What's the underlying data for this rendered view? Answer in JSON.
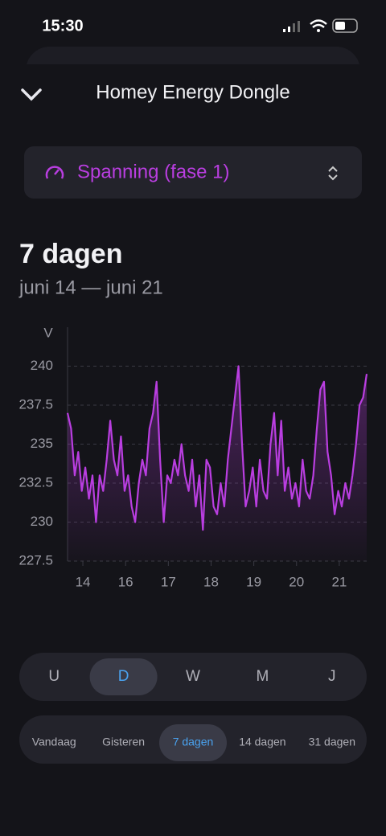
{
  "status_bar": {
    "time": "15:30"
  },
  "header": {
    "title": "Homey Energy Dongle"
  },
  "selector": {
    "label": "Spanning (fase 1)"
  },
  "period": {
    "title": "7 dagen",
    "range": "juni 14 — juni 21"
  },
  "chart_data": {
    "type": "line",
    "y_label": "V",
    "grid": true,
    "area": true,
    "xlim": [
      0,
      168
    ],
    "ylim": [
      227.5,
      242.5
    ],
    "xticks": [
      {
        "value": 8.6,
        "label": "14"
      },
      {
        "value": 32.6,
        "label": "16"
      },
      {
        "value": 56.6,
        "label": "17"
      },
      {
        "value": 80.6,
        "label": "18"
      },
      {
        "value": 104.6,
        "label": "19"
      },
      {
        "value": 128.6,
        "label": "20"
      },
      {
        "value": 152.6,
        "label": "21"
      }
    ],
    "yticks": [
      227.5,
      230,
      232.5,
      235,
      237.5,
      240
    ],
    "series": [
      {
        "color": "#b93ee0",
        "x": [
          0,
          2,
          4,
          6,
          8,
          10,
          12,
          14,
          16,
          18,
          20,
          22,
          24,
          26,
          28,
          30,
          32,
          34,
          36,
          38,
          40,
          42,
          44,
          46,
          48,
          50,
          52,
          54,
          56,
          58,
          60,
          62,
          64,
          66,
          68,
          70,
          72,
          74,
          76,
          78,
          80,
          82,
          84,
          86,
          88,
          90,
          92,
          94,
          96,
          98,
          100,
          102,
          104,
          106,
          108,
          110,
          112,
          114,
          116,
          118,
          120,
          122,
          124,
          126,
          128,
          130,
          132,
          134,
          136,
          138,
          140,
          142,
          144,
          146,
          148,
          150,
          152,
          154,
          156,
          158,
          160,
          162,
          164,
          166,
          168
        ],
        "values": [
          237,
          236,
          233,
          234.5,
          232,
          233.5,
          231.5,
          233,
          230,
          233,
          232,
          234,
          236.5,
          234,
          233,
          235.5,
          232,
          233,
          231,
          230,
          232.5,
          234,
          233,
          236,
          237,
          239,
          234,
          230,
          233,
          232.5,
          234,
          233,
          235,
          233,
          232,
          234,
          231,
          233,
          229.5,
          234,
          233.5,
          231,
          230.5,
          232.5,
          231,
          234,
          236,
          238,
          240,
          235,
          231,
          232,
          233.5,
          231,
          234,
          232,
          231.5,
          235,
          237,
          233,
          236.5,
          232,
          233.5,
          231.5,
          232.5,
          231,
          234,
          232,
          231.5,
          233,
          236,
          238.5,
          239,
          234.5,
          233,
          230.5,
          232,
          231,
          232.5,
          231.5,
          233,
          235,
          237.5,
          238,
          239.5
        ]
      }
    ]
  },
  "granularity": {
    "options": [
      "U",
      "D",
      "W",
      "M",
      "J"
    ],
    "active": 1
  },
  "ranges": {
    "options": [
      "Vandaag",
      "Gisteren",
      "7 dagen",
      "14 dagen",
      "31 dagen"
    ],
    "active": 2
  }
}
